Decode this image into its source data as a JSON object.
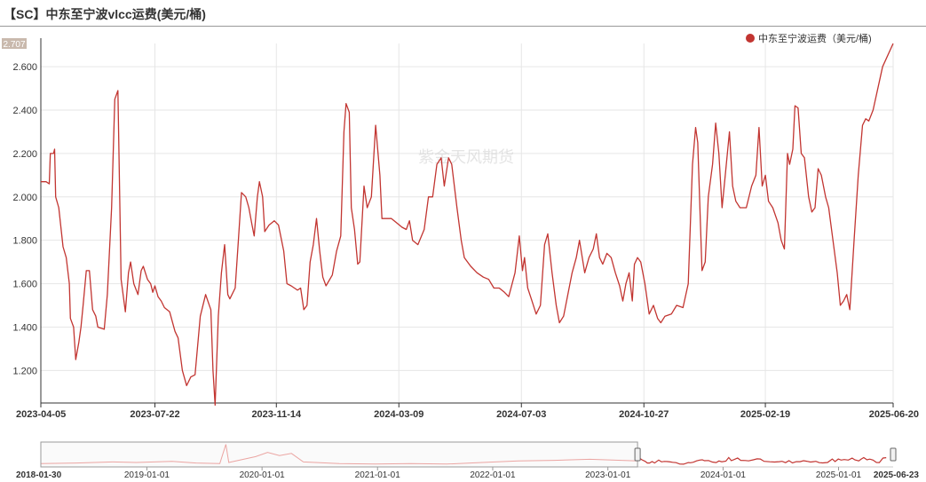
{
  "title": "【SC】中东至宁波vlcc运费(美元/桶)",
  "watermark": "紫金天风期货",
  "colors": {
    "series": "#c23531",
    "grid": "#e6e6e6",
    "axis": "#333333",
    "nav_line": "#f0a9a6"
  },
  "chart_data": {
    "type": "line",
    "title": "【SC】中东至宁波vlcc运费(美元/桶)",
    "ylim": [
      1.05,
      2.707
    ],
    "y_ticks": [
      "1.200",
      "1.400",
      "1.600",
      "1.800",
      "2.000",
      "2.200",
      "2.400",
      "2.600"
    ],
    "y_max_label": "2.707",
    "x_ticks": [
      "2023-04-05",
      "2023-07-22",
      "2023-11-14",
      "2024-03-09",
      "2024-07-03",
      "2024-10-27",
      "2025-02-19",
      "2025-06-20"
    ],
    "x_range": [
      "2023-04-05",
      "2025-06-20"
    ],
    "grid": true,
    "legend_position": "top-right",
    "series": [
      {
        "name": "中东至宁波运费（美元/桶)",
        "points": [
          [
            "2023-04-05",
            2.07
          ],
          [
            "2023-04-10",
            2.07
          ],
          [
            "2023-04-13",
            2.06
          ],
          [
            "2023-04-14",
            2.2
          ],
          [
            "2023-04-17",
            2.2
          ],
          [
            "2023-04-18",
            2.22
          ],
          [
            "2023-04-19",
            2.0
          ],
          [
            "2023-04-22",
            1.95
          ],
          [
            "2023-04-26",
            1.77
          ],
          [
            "2023-04-29",
            1.72
          ],
          [
            "2023-05-02",
            1.6
          ],
          [
            "2023-05-03",
            1.44
          ],
          [
            "2023-05-06",
            1.4
          ],
          [
            "2023-05-08",
            1.25
          ],
          [
            "2023-05-11",
            1.33
          ],
          [
            "2023-05-13",
            1.4
          ],
          [
            "2023-05-15",
            1.5
          ],
          [
            "2023-05-18",
            1.66
          ],
          [
            "2023-05-21",
            1.66
          ],
          [
            "2023-05-24",
            1.48
          ],
          [
            "2023-05-27",
            1.45
          ],
          [
            "2023-05-29",
            1.4
          ],
          [
            "2023-06-04",
            1.39
          ],
          [
            "2023-06-07",
            1.55
          ],
          [
            "2023-06-11",
            1.95
          ],
          [
            "2023-06-14",
            2.45
          ],
          [
            "2023-06-17",
            2.49
          ],
          [
            "2023-06-20",
            1.62
          ],
          [
            "2023-06-24",
            1.47
          ],
          [
            "2023-06-27",
            1.65
          ],
          [
            "2023-06-29",
            1.7
          ],
          [
            "2023-07-02",
            1.6
          ],
          [
            "2023-07-06",
            1.55
          ],
          [
            "2023-07-09",
            1.66
          ],
          [
            "2023-07-11",
            1.68
          ],
          [
            "2023-07-15",
            1.62
          ],
          [
            "2023-07-18",
            1.6
          ],
          [
            "2023-07-20",
            1.56
          ],
          [
            "2023-07-22",
            1.59
          ],
          [
            "2023-07-25",
            1.54
          ],
          [
            "2023-07-28",
            1.52
          ],
          [
            "2023-07-31",
            1.49
          ],
          [
            "2023-08-05",
            1.47
          ],
          [
            "2023-08-10",
            1.38
          ],
          [
            "2023-08-13",
            1.35
          ],
          [
            "2023-08-17",
            1.2
          ],
          [
            "2023-08-21",
            1.13
          ],
          [
            "2023-08-25",
            1.17
          ],
          [
            "2023-08-29",
            1.18
          ],
          [
            "2023-09-03",
            1.45
          ],
          [
            "2023-09-08",
            1.55
          ],
          [
            "2023-09-13",
            1.48
          ],
          [
            "2023-09-15",
            1.2
          ],
          [
            "2023-09-17",
            1.04
          ],
          [
            "2023-09-20",
            1.45
          ],
          [
            "2023-09-23",
            1.65
          ],
          [
            "2023-09-26",
            1.78
          ],
          [
            "2023-09-29",
            1.55
          ],
          [
            "2023-10-01",
            1.53
          ],
          [
            "2023-10-06",
            1.58
          ],
          [
            "2023-10-09",
            1.8
          ],
          [
            "2023-10-12",
            2.02
          ],
          [
            "2023-10-16",
            2.0
          ],
          [
            "2023-10-19",
            1.95
          ],
          [
            "2023-10-22",
            1.87
          ],
          [
            "2023-10-24",
            1.82
          ],
          [
            "2023-10-27",
            2.0
          ],
          [
            "2023-10-29",
            2.07
          ],
          [
            "2023-11-01",
            2.0
          ],
          [
            "2023-11-03",
            1.84
          ],
          [
            "2023-11-07",
            1.87
          ],
          [
            "2023-11-12",
            1.89
          ],
          [
            "2023-11-16",
            1.87
          ],
          [
            "2023-11-21",
            1.75
          ],
          [
            "2023-11-24",
            1.6
          ],
          [
            "2023-11-28",
            1.59
          ],
          [
            "2023-12-04",
            1.57
          ],
          [
            "2023-12-07",
            1.58
          ],
          [
            "2023-12-10",
            1.48
          ],
          [
            "2023-12-13",
            1.5
          ],
          [
            "2023-12-16",
            1.7
          ],
          [
            "2023-12-19",
            1.78
          ],
          [
            "2023-12-22",
            1.9
          ],
          [
            "2023-12-25",
            1.75
          ],
          [
            "2023-12-28",
            1.63
          ],
          [
            "2023-12-31",
            1.59
          ],
          [
            "2024-01-06",
            1.64
          ],
          [
            "2024-01-10",
            1.75
          ],
          [
            "2024-01-14",
            1.82
          ],
          [
            "2024-01-17",
            2.3
          ],
          [
            "2024-01-19",
            2.43
          ],
          [
            "2024-01-22",
            2.39
          ],
          [
            "2024-01-24",
            1.95
          ],
          [
            "2024-01-27",
            1.85
          ],
          [
            "2024-01-30",
            1.69
          ],
          [
            "2024-02-01",
            1.7
          ],
          [
            "2024-02-05",
            2.05
          ],
          [
            "2024-02-08",
            1.95
          ],
          [
            "2024-02-12",
            2.0
          ],
          [
            "2024-02-16",
            2.33
          ],
          [
            "2024-02-20",
            2.1
          ],
          [
            "2024-02-22",
            1.9
          ],
          [
            "2024-02-26",
            1.9
          ],
          [
            "2024-03-02",
            1.9
          ],
          [
            "2024-03-07",
            1.88
          ],
          [
            "2024-03-12",
            1.86
          ],
          [
            "2024-03-16",
            1.85
          ],
          [
            "2024-03-19",
            1.89
          ],
          [
            "2024-03-22",
            1.8
          ],
          [
            "2024-03-27",
            1.78
          ],
          [
            "2024-04-02",
            1.85
          ],
          [
            "2024-04-06",
            2.0
          ],
          [
            "2024-04-10",
            2.0
          ],
          [
            "2024-04-14",
            2.15
          ],
          [
            "2024-04-18",
            2.18
          ],
          [
            "2024-04-21",
            2.05
          ],
          [
            "2024-04-25",
            2.18
          ],
          [
            "2024-04-28",
            2.15
          ],
          [
            "2024-05-03",
            1.95
          ],
          [
            "2024-05-07",
            1.8
          ],
          [
            "2024-05-10",
            1.72
          ],
          [
            "2024-05-16",
            1.68
          ],
          [
            "2024-05-22",
            1.65
          ],
          [
            "2024-05-28",
            1.63
          ],
          [
            "2024-06-02",
            1.62
          ],
          [
            "2024-06-07",
            1.58
          ],
          [
            "2024-06-12",
            1.58
          ],
          [
            "2024-06-17",
            1.56
          ],
          [
            "2024-06-21",
            1.54
          ],
          [
            "2024-06-27",
            1.65
          ],
          [
            "2024-07-01",
            1.82
          ],
          [
            "2024-07-04",
            1.66
          ],
          [
            "2024-07-06",
            1.72
          ],
          [
            "2024-07-09",
            1.58
          ],
          [
            "2024-07-13",
            1.52
          ],
          [
            "2024-07-17",
            1.46
          ],
          [
            "2024-07-21",
            1.5
          ],
          [
            "2024-07-25",
            1.78
          ],
          [
            "2024-07-28",
            1.83
          ],
          [
            "2024-08-01",
            1.65
          ],
          [
            "2024-08-05",
            1.5
          ],
          [
            "2024-08-08",
            1.42
          ],
          [
            "2024-08-12",
            1.45
          ],
          [
            "2024-08-16",
            1.55
          ],
          [
            "2024-08-20",
            1.65
          ],
          [
            "2024-08-24",
            1.72
          ],
          [
            "2024-08-27",
            1.8
          ],
          [
            "2024-09-01",
            1.65
          ],
          [
            "2024-09-05",
            1.72
          ],
          [
            "2024-09-09",
            1.76
          ],
          [
            "2024-09-12",
            1.83
          ],
          [
            "2024-09-15",
            1.72
          ],
          [
            "2024-09-18",
            1.69
          ],
          [
            "2024-09-22",
            1.74
          ],
          [
            "2024-09-26",
            1.72
          ],
          [
            "2024-09-30",
            1.65
          ],
          [
            "2024-10-04",
            1.59
          ],
          [
            "2024-10-07",
            1.52
          ],
          [
            "2024-10-10",
            1.6
          ],
          [
            "2024-10-13",
            1.65
          ],
          [
            "2024-10-16",
            1.52
          ],
          [
            "2024-10-18",
            1.69
          ],
          [
            "2024-10-21",
            1.72
          ],
          [
            "2024-10-24",
            1.7
          ],
          [
            "2024-10-28",
            1.6
          ],
          [
            "2024-11-01",
            1.46
          ],
          [
            "2024-11-05",
            1.5
          ],
          [
            "2024-11-09",
            1.44
          ],
          [
            "2024-11-12",
            1.42
          ],
          [
            "2024-11-16",
            1.45
          ],
          [
            "2024-11-22",
            1.46
          ],
          [
            "2024-11-27",
            1.5
          ],
          [
            "2024-12-03",
            1.49
          ],
          [
            "2024-12-08",
            1.6
          ],
          [
            "2024-12-12",
            2.15
          ],
          [
            "2024-12-15",
            2.32
          ],
          [
            "2024-12-17",
            2.25
          ],
          [
            "2024-12-21",
            1.66
          ],
          [
            "2024-12-24",
            1.7
          ],
          [
            "2024-12-27",
            2.0
          ],
          [
            "2024-12-31",
            2.15
          ],
          [
            "2025-01-03",
            2.34
          ],
          [
            "2025-01-06",
            2.2
          ],
          [
            "2025-01-09",
            1.95
          ],
          [
            "2025-01-12",
            2.1
          ],
          [
            "2025-01-16",
            2.3
          ],
          [
            "2025-01-19",
            2.05
          ],
          [
            "2025-01-22",
            1.98
          ],
          [
            "2025-01-26",
            1.95
          ],
          [
            "2025-02-01",
            1.95
          ],
          [
            "2025-02-06",
            2.05
          ],
          [
            "2025-02-10",
            2.1
          ],
          [
            "2025-02-13",
            2.32
          ],
          [
            "2025-02-16",
            2.05
          ],
          [
            "2025-02-19",
            2.1
          ],
          [
            "2025-02-22",
            1.98
          ],
          [
            "2025-02-26",
            1.95
          ],
          [
            "2025-03-03",
            1.88
          ],
          [
            "2025-03-06",
            1.8
          ],
          [
            "2025-03-09",
            1.76
          ],
          [
            "2025-03-12",
            2.2
          ],
          [
            "2025-03-14",
            2.15
          ],
          [
            "2025-03-17",
            2.22
          ],
          [
            "2025-03-19",
            2.42
          ],
          [
            "2025-03-22",
            2.41
          ],
          [
            "2025-03-25",
            2.2
          ],
          [
            "2025-03-28",
            2.18
          ],
          [
            "2025-04-01",
            2.0
          ],
          [
            "2025-04-04",
            1.93
          ],
          [
            "2025-04-07",
            1.95
          ],
          [
            "2025-04-10",
            2.13
          ],
          [
            "2025-04-13",
            2.1
          ],
          [
            "2025-04-17",
            2.0
          ],
          [
            "2025-04-20",
            1.95
          ],
          [
            "2025-04-24",
            1.8
          ],
          [
            "2025-04-28",
            1.65
          ],
          [
            "2025-05-01",
            1.5
          ],
          [
            "2025-05-04",
            1.52
          ],
          [
            "2025-05-07",
            1.55
          ],
          [
            "2025-05-10",
            1.48
          ],
          [
            "2025-05-14",
            1.8
          ],
          [
            "2025-05-18",
            2.1
          ],
          [
            "2025-05-22",
            2.33
          ],
          [
            "2025-05-25",
            2.36
          ],
          [
            "2025-05-28",
            2.35
          ],
          [
            "2025-06-01",
            2.4
          ],
          [
            "2025-06-10",
            2.6
          ],
          [
            "2025-06-20",
            2.707
          ]
        ]
      }
    ],
    "navigator": {
      "range": [
        "2018-01-30",
        "2025-06-23"
      ],
      "selected": [
        "2023-04-05",
        "2025-06-20"
      ],
      "ticks": [
        "2019-01-01",
        "2020-01-01",
        "2021-01-01",
        "2022-01-01",
        "2023-01-01",
        "2024-01-01",
        "2025-01-01"
      ],
      "start_label": "2018-01-30",
      "end_label": "2025-06-23"
    }
  }
}
